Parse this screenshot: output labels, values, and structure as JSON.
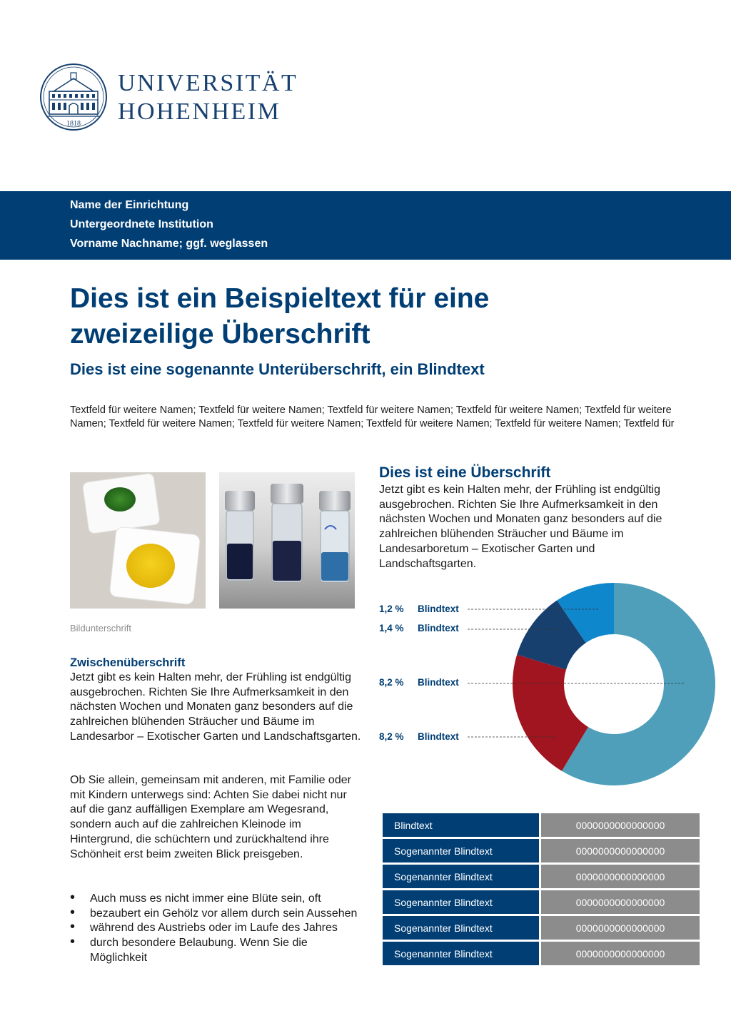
{
  "logo": {
    "line1": "UNIVERSITÄT",
    "line2": "HOHENHEIM",
    "seal_year": "1818"
  },
  "band": {
    "line1": "Name der Einrichtung",
    "line2": "Untergeordnete Institution",
    "line3": "Vorname Nachname; ggf. weglassen"
  },
  "title": {
    "line1": "Dies ist ein Beispieltext für eine",
    "line2": "zweizeilige Überschrift",
    "subtitle": "Dies ist eine sogenannte Unterüberschrift, ein Blindtext"
  },
  "names_text": "Textfeld für weitere Namen; Textfeld für weitere Namen; Textfeld für weitere Namen; Textfeld für weitere Namen; Textfeld für weitere Namen; Textfeld für weitere Namen; Textfeld für weitere Namen; Textfeld für weitere Namen; Textfeld für weitere Namen; Textfeld für",
  "images": {
    "left": "photo-green-and-yellow-powders",
    "right": "photo-three-vials-blue-liquid",
    "caption": "Bildunterschrift"
  },
  "left_column": {
    "heading": "Zwischenüberschrift",
    "paragraph1": "Jetzt gibt es kein Halten mehr, der Frühling ist endgültig ausgebrochen. Richten Sie Ihre Aufmerksamkeit in den nächsten Wochen und Monaten ganz besonders auf die zahlreichen blühenden Sträucher und Bäume im Landesarbor – Exotischer Garten und Landschaftsgarten.",
    "paragraph2": "Ob Sie allein, gemeinsam mit anderen, mit Familie oder mit Kindern unterwegs sind: Achten Sie dabei nicht nur auf die ganz auffälligen Exemplare am Wegesrand, sondern auch auf die zahlreichen Kleinode im Hintergrund, die schüchtern und zurückhaltend ihre Schönheit erst beim zweiten Blick preisgeben.",
    "bullets": [
      "Auch muss es nicht immer eine Blüte sein, oft",
      "bezaubert ein Gehölz vor allem durch sein Aussehen",
      "während des Austriebs oder im Laufe des Jahres",
      "durch besondere Belaubung. Wenn Sie die Möglichkeit"
    ]
  },
  "right_column": {
    "heading": "Dies ist eine Überschrift",
    "paragraph": "Jetzt gibt es kein Halten mehr, der Frühling ist endgültig ausgebrochen. Richten Sie Ihre Aufmerksamkeit in den nächsten Wochen und Monaten ganz besonders auf die zahlreichen blühenden Sträucher und Bäume im Landesarboretum – Exotischer Garten und Landschaftsgarten."
  },
  "chart_data": {
    "type": "pie",
    "variant": "donut",
    "legend_entries": [
      {
        "label_value": "1,2 %",
        "name": "Blindtext",
        "color": "#0e87cc"
      },
      {
        "label_value": "1,4 %",
        "name": "Blindtext",
        "color": "#17406f"
      },
      {
        "label_value": "8,2 %",
        "name": "Blindtext",
        "color": "#a0151f"
      },
      {
        "label_value": "8,2 %",
        "name": "Blindtext",
        "color": "#4f9fbb"
      }
    ],
    "segments": [
      {
        "color": "#4f9fbb",
        "share": 0.586
      },
      {
        "color": "#a0151f",
        "share": 0.211
      },
      {
        "color": "#17406f",
        "share": 0.108
      },
      {
        "color": "#0e87cc",
        "share": 0.095
      }
    ],
    "legend_placement": "left"
  },
  "table": {
    "rows": [
      {
        "label": "Blindtext",
        "value": "0000000000000000"
      },
      {
        "label": "Sogenannter Blindtext",
        "value": "0000000000000000"
      },
      {
        "label": "Sogenannter Blindtext",
        "value": "0000000000000000"
      },
      {
        "label": "Sogenannter Blindtext",
        "value": "0000000000000000"
      },
      {
        "label": "Sogenannter Blindtext",
        "value": "0000000000000000"
      },
      {
        "label": "Sogenannter Blindtext",
        "value": "0000000000000000"
      }
    ]
  },
  "colors": {
    "brand_blue": "#003e74",
    "gray": "#8c8c8c"
  }
}
